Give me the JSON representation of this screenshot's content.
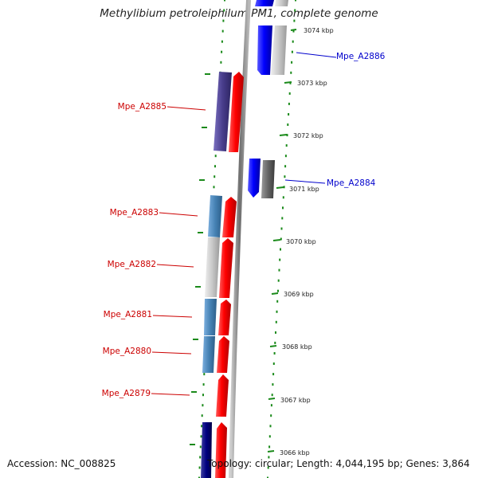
{
  "title": "Methylibium petroleiphilum PM1, complete genome",
  "footer": {
    "accession": "Accession: NC_008825",
    "topology": "Topology: circular; Length: 4,044,195 bp; Genes: 3,864"
  },
  "scale_labels": [
    "3074 kbp",
    "3073 kbp",
    "3072 kbp",
    "3071 kbp",
    "3070 kbp",
    "3069 kbp",
    "3068 kbp",
    "3067 kbp",
    "3066 kbp"
  ],
  "gene_labels": [
    {
      "text": "Mpe_A2886",
      "color": "#0000cc"
    },
    {
      "text": "Mpe_A2885",
      "color": "#cc0000"
    },
    {
      "text": "Mpe_A2884",
      "color": "#0000cc"
    },
    {
      "text": "Mpe_A2883",
      "color": "#cc0000"
    },
    {
      "text": "Mpe_A2882",
      "color": "#cc0000"
    },
    {
      "text": "Mpe_A2881",
      "color": "#cc0000"
    },
    {
      "text": "Mpe_A2880",
      "color": "#cc0000"
    },
    {
      "text": "Mpe_A2879",
      "color": "#cc0000"
    }
  ],
  "colors": {
    "dotted_guides": "#1a8a1a",
    "backbone": "#888888",
    "forward_label": "#cc0000",
    "reverse_label": "#0000cc"
  }
}
